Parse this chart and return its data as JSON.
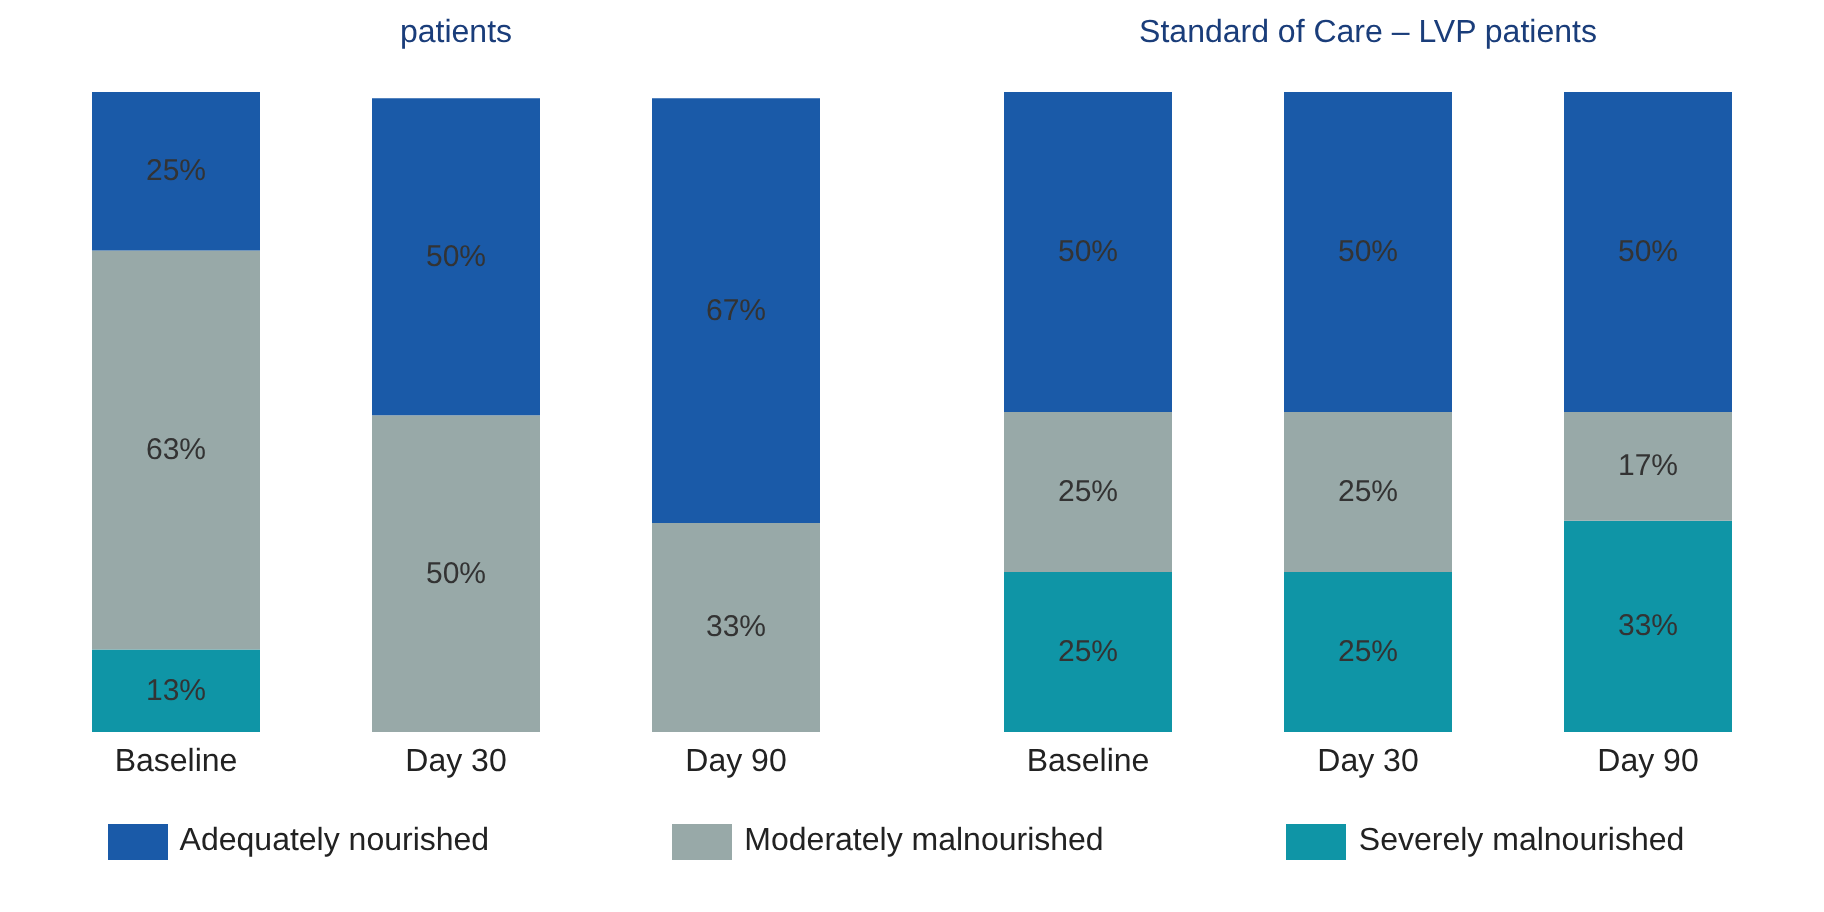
{
  "chart_data": [
    {
      "type": "bar",
      "title": "patients",
      "stacked": true,
      "categories": [
        "Baseline",
        "Day 30",
        "Day 90"
      ],
      "series": [
        {
          "color": "#0f95a6",
          "values": [
            13,
            null,
            null
          ],
          "value_labels": [
            "13%",
            null,
            null
          ]
        },
        {
          "color": "#98a9a8",
          "values": [
            63,
            50,
            33
          ],
          "value_labels": [
            "63%",
            "50%",
            "33%"
          ]
        },
        {
          "color": "#1a5aa8",
          "values": [
            25,
            50,
            67
          ],
          "value_labels": [
            "25%",
            "50%",
            "67%"
          ]
        }
      ]
    },
    {
      "type": "bar",
      "title": "Standard of Care – LVP patients",
      "stacked": true,
      "legend": "bottom",
      "categories": [
        "Baseline",
        "Day 30",
        "Day 90"
      ],
      "series": [
        {
          "name": "Severely malnourished",
          "color": "#0f95a6",
          "values": [
            25,
            25,
            33
          ],
          "value_labels": [
            "25%",
            "25%",
            "33%"
          ]
        },
        {
          "name": "Moderately malnourished",
          "color": "#98a9a8",
          "values": [
            25,
            25,
            17
          ],
          "value_labels": [
            "25%",
            "25%",
            "17%"
          ]
        },
        {
          "name": "Adequately nourished",
          "color": "#1a5aa8",
          "values": [
            50,
            50,
            50
          ],
          "value_labels": [
            "50%",
            "50%",
            "50%"
          ]
        }
      ]
    }
  ]
}
